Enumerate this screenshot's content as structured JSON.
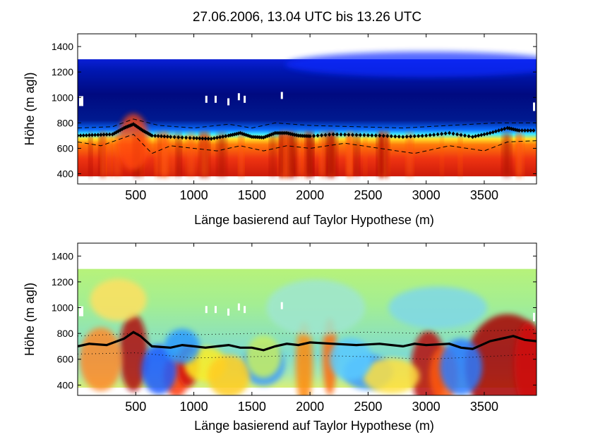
{
  "figure": {
    "title": "27.06.2006, 13.04 UTC bis 13.26 UTC"
  },
  "chart_data": [
    {
      "type": "heatmap",
      "title": "",
      "xlabel": "Länge basierend auf Taylor Hypothese (m)",
      "ylabel": "Höhe (m agl)",
      "xlim": [
        0,
        3950
      ],
      "ylim": [
        320,
        1500
      ],
      "xticks": [
        500,
        1000,
        1500,
        2000,
        2500,
        3000,
        3500
      ],
      "yticks": [
        400,
        600,
        800,
        1000,
        1200,
        1400
      ],
      "grid": false,
      "data_top": 1300,
      "data_bottom": 380,
      "colormap": "jet",
      "series": [
        {
          "style": "diamond-markers",
          "x": [
            0,
            150,
            300,
            400,
            480,
            560,
            640,
            800,
            1000,
            1150,
            1300,
            1400,
            1500,
            1600,
            1700,
            1800,
            1900,
            2000,
            2200,
            2400,
            2600,
            2800,
            3000,
            3200,
            3400,
            3550,
            3700,
            3800,
            3950
          ],
          "y": [
            700,
            705,
            710,
            760,
            790,
            740,
            700,
            690,
            680,
            675,
            700,
            720,
            690,
            685,
            720,
            720,
            700,
            695,
            710,
            705,
            700,
            690,
            700,
            720,
            690,
            720,
            760,
            740,
            740
          ]
        },
        {
          "style": "dashed-upper",
          "x": [
            0,
            300,
            480,
            700,
            1000,
            1300,
            1500,
            1700,
            2000,
            2400,
            2800,
            3200,
            3600,
            3950
          ],
          "y": [
            760,
            770,
            830,
            780,
            760,
            790,
            760,
            800,
            780,
            770,
            760,
            780,
            800,
            800
          ]
        },
        {
          "style": "dashed-lower",
          "x": [
            0,
            200,
            480,
            640,
            800,
            1000,
            1200,
            1400,
            1600,
            1800,
            2000,
            2300,
            2600,
            2900,
            3200,
            3500,
            3700,
            3950
          ],
          "y": [
            650,
            620,
            710,
            560,
            620,
            600,
            580,
            620,
            580,
            620,
            600,
            640,
            600,
            560,
            620,
            580,
            650,
            660
          ]
        }
      ]
    },
    {
      "type": "heatmap",
      "title": "",
      "xlabel": "Länge basierend auf Taylor Hypothese (m)",
      "ylabel": "Höhe (m agl)",
      "xlim": [
        0,
        3950
      ],
      "ylim": [
        320,
        1500
      ],
      "xticks": [
        500,
        1000,
        1500,
        2000,
        2500,
        3000,
        3500
      ],
      "yticks": [
        400,
        600,
        800,
        1000,
        1200,
        1400
      ],
      "grid": false,
      "data_top": 1300,
      "data_bottom": 380,
      "colormap": "jet",
      "series": [
        {
          "style": "bold-line",
          "x": [
            0,
            100,
            250,
            400,
            480,
            540,
            640,
            800,
            900,
            1000,
            1100,
            1200,
            1300,
            1400,
            1500,
            1600,
            1700,
            1800,
            1900,
            2000,
            2200,
            2400,
            2600,
            2800,
            2900,
            3000,
            3200,
            3300,
            3400,
            3550,
            3650,
            3750,
            3850,
            3950
          ],
          "y": [
            700,
            720,
            710,
            760,
            810,
            780,
            700,
            690,
            710,
            700,
            690,
            700,
            710,
            690,
            690,
            670,
            700,
            720,
            710,
            730,
            720,
            710,
            720,
            700,
            720,
            710,
            720,
            690,
            680,
            740,
            760,
            780,
            750,
            740
          ]
        },
        {
          "style": "dotted-upper",
          "x": [
            0,
            500,
            1000,
            1500,
            2000,
            2500,
            3000,
            3500,
            3950
          ],
          "y": [
            780,
            800,
            790,
            800,
            800,
            810,
            800,
            820,
            830
          ]
        },
        {
          "style": "dotted-lower",
          "x": [
            0,
            500,
            1000,
            1500,
            2000,
            2500,
            3000,
            3500,
            3950
          ],
          "y": [
            640,
            650,
            610,
            620,
            630,
            620,
            600,
            620,
            640
          ]
        }
      ]
    }
  ]
}
